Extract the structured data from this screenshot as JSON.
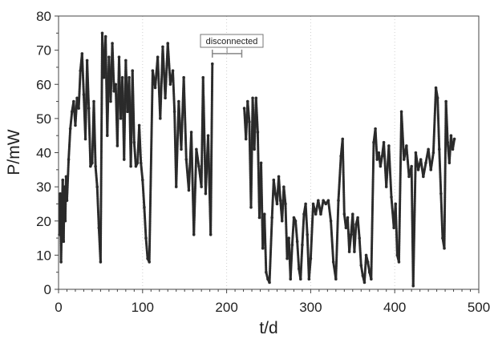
{
  "chart_data": {
    "type": "scatter",
    "xlabel": "t/d",
    "ylabel": "P/mW",
    "xlim": [
      0,
      500
    ],
    "ylim": [
      0,
      80
    ],
    "x_ticks": [
      "0",
      "100",
      "200",
      "300",
      "400",
      "500"
    ],
    "y_ticks": [
      "0",
      "10",
      "20",
      "30",
      "40",
      "50",
      "60",
      "70",
      "80"
    ],
    "grid": "vertical dotted",
    "legend": "none",
    "marker_color": "#2b2b2b",
    "annotation": {
      "text": "disconnected",
      "x_start": 183,
      "x_end": 218,
      "y": 69
    },
    "series": [
      {
        "points": [
          [
            1,
            16
          ],
          [
            2,
            28
          ],
          [
            3,
            8
          ],
          [
            4,
            22
          ],
          [
            5,
            32
          ],
          [
            6,
            14
          ],
          [
            7,
            30
          ],
          [
            8,
            20
          ],
          [
            9,
            33
          ],
          [
            10,
            26
          ],
          [
            12,
            38
          ],
          [
            14,
            47
          ],
          [
            16,
            52
          ],
          [
            18,
            55
          ],
          [
            20,
            48
          ],
          [
            22,
            56
          ],
          [
            24,
            53
          ],
          [
            26,
            64
          ],
          [
            28,
            69
          ],
          [
            30,
            57
          ],
          [
            32,
            44
          ],
          [
            34,
            67
          ],
          [
            36,
            53
          ],
          [
            38,
            36
          ],
          [
            40,
            37
          ],
          [
            42,
            55
          ],
          [
            44,
            36
          ],
          [
            46,
            30
          ],
          [
            48,
            18
          ],
          [
            50,
            8
          ],
          [
            52,
            75
          ],
          [
            54,
            62
          ],
          [
            56,
            74
          ],
          [
            58,
            45
          ],
          [
            60,
            68
          ],
          [
            62,
            55
          ],
          [
            64,
            72
          ],
          [
            66,
            58
          ],
          [
            68,
            60
          ],
          [
            70,
            42
          ],
          [
            72,
            68
          ],
          [
            74,
            50
          ],
          [
            76,
            62
          ],
          [
            78,
            38
          ],
          [
            80,
            67
          ],
          [
            82,
            52
          ],
          [
            84,
            62
          ],
          [
            86,
            36
          ],
          [
            88,
            64
          ],
          [
            90,
            43
          ],
          [
            92,
            36
          ],
          [
            94,
            37
          ],
          [
            96,
            48
          ],
          [
            98,
            37
          ],
          [
            100,
            32
          ],
          [
            102,
            24
          ],
          [
            104,
            15
          ],
          [
            106,
            9
          ],
          [
            108,
            8
          ],
          [
            112,
            64
          ],
          [
            115,
            59
          ],
          [
            118,
            68
          ],
          [
            121,
            50
          ],
          [
            124,
            71
          ],
          [
            127,
            56
          ],
          [
            130,
            72
          ],
          [
            133,
            60
          ],
          [
            136,
            64
          ],
          [
            138,
            52
          ],
          [
            140,
            30
          ],
          [
            143,
            55
          ],
          [
            146,
            41
          ],
          [
            149,
            62
          ],
          [
            152,
            38
          ],
          [
            155,
            29
          ],
          [
            158,
            46
          ],
          [
            161,
            16
          ],
          [
            164,
            41
          ],
          [
            167,
            36
          ],
          [
            170,
            30
          ],
          [
            172,
            62
          ],
          [
            175,
            28
          ],
          [
            178,
            45
          ],
          [
            181,
            16
          ],
          [
            183,
            66
          ],
          [
            221,
            53
          ],
          [
            223,
            44
          ],
          [
            225,
            55
          ],
          [
            227,
            49
          ],
          [
            229,
            24
          ],
          [
            231,
            56
          ],
          [
            233,
            41
          ],
          [
            235,
            56
          ],
          [
            237,
            46
          ],
          [
            239,
            21
          ],
          [
            241,
            37
          ],
          [
            243,
            12
          ],
          [
            245,
            22
          ],
          [
            247,
            5
          ],
          [
            249,
            3
          ],
          [
            251,
            2
          ],
          [
            254,
            21
          ],
          [
            256,
            32
          ],
          [
            258,
            28
          ],
          [
            260,
            25
          ],
          [
            262,
            33
          ],
          [
            264,
            26
          ],
          [
            266,
            20
          ],
          [
            268,
            30
          ],
          [
            270,
            25
          ],
          [
            272,
            9
          ],
          [
            274,
            15
          ],
          [
            276,
            3
          ],
          [
            278,
            13
          ],
          [
            280,
            21
          ],
          [
            282,
            20
          ],
          [
            284,
            14
          ],
          [
            286,
            6
          ],
          [
            288,
            3
          ],
          [
            290,
            13
          ],
          [
            292,
            22
          ],
          [
            294,
            25
          ],
          [
            296,
            16
          ],
          [
            298,
            3
          ],
          [
            300,
            9
          ],
          [
            303,
            25
          ],
          [
            306,
            22
          ],
          [
            309,
            26
          ],
          [
            312,
            22
          ],
          [
            315,
            26
          ],
          [
            318,
            25
          ],
          [
            321,
            26
          ],
          [
            324,
            20
          ],
          [
            327,
            8
          ],
          [
            330,
            3
          ],
          [
            333,
            26
          ],
          [
            336,
            39
          ],
          [
            338,
            44
          ],
          [
            340,
            22
          ],
          [
            342,
            18
          ],
          [
            344,
            21
          ],
          [
            346,
            11
          ],
          [
            348,
            16
          ],
          [
            350,
            22
          ],
          [
            352,
            11
          ],
          [
            354,
            19
          ],
          [
            356,
            21
          ],
          [
            358,
            15
          ],
          [
            360,
            7
          ],
          [
            362,
            4
          ],
          [
            364,
            2
          ],
          [
            366,
            10
          ],
          [
            368,
            8
          ],
          [
            370,
            5
          ],
          [
            372,
            3
          ],
          [
            375,
            43
          ],
          [
            377,
            47
          ],
          [
            379,
            38
          ],
          [
            381,
            40
          ],
          [
            383,
            36
          ],
          [
            385,
            39
          ],
          [
            387,
            43
          ],
          [
            390,
            30
          ],
          [
            393,
            42
          ],
          [
            396,
            27
          ],
          [
            399,
            18
          ],
          [
            401,
            25
          ],
          [
            403,
            10
          ],
          [
            405,
            8
          ],
          [
            408,
            52
          ],
          [
            411,
            38
          ],
          [
            414,
            42
          ],
          [
            417,
            33
          ],
          [
            420,
            36
          ],
          [
            422,
            1
          ],
          [
            425,
            40
          ],
          [
            428,
            35
          ],
          [
            431,
            38
          ],
          [
            434,
            33
          ],
          [
            437,
            37
          ],
          [
            440,
            41
          ],
          [
            443,
            35
          ],
          [
            446,
            40
          ],
          [
            449,
            59
          ],
          [
            451,
            56
          ],
          [
            453,
            41
          ],
          [
            455,
            28
          ],
          [
            457,
            15
          ],
          [
            459,
            12
          ],
          [
            461,
            55
          ],
          [
            463,
            43
          ],
          [
            465,
            37
          ],
          [
            467,
            45
          ],
          [
            469,
            41
          ],
          [
            471,
            44
          ]
        ]
      }
    ]
  }
}
